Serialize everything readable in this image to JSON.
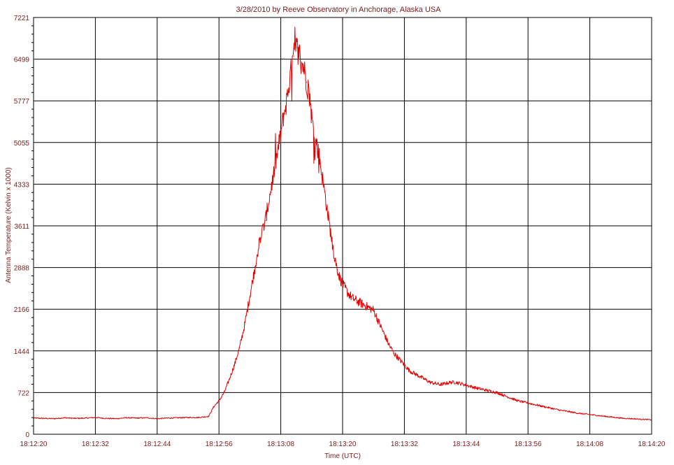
{
  "chart_data": {
    "type": "line",
    "title": "3/28/2010  by  Reeve Observatory  in  Anchorage, Alaska  USA",
    "xlabel": "Time (UTC)",
    "ylabel": "Antenna Temperature (Kelvin x 1000)",
    "x_ticks": [
      "18:12:20",
      "18:12:32",
      "18:12:44",
      "18:12:56",
      "18:13:08",
      "18:13:20",
      "18:13:32",
      "18:13:44",
      "18:13:56",
      "18:14:08",
      "18:14:20"
    ],
    "y_ticks": [
      "0",
      "722",
      "1444",
      "2166",
      "2888",
      "3611",
      "4333",
      "5055",
      "5777",
      "6499",
      "7221"
    ],
    "xlim_seconds": [
      0,
      120
    ],
    "ylim": [
      0,
      7221
    ],
    "grid": true,
    "line_color": "#e00000",
    "series": [
      {
        "x_seconds": [
          0,
          2,
          4,
          6,
          8,
          10,
          12,
          14,
          16,
          18,
          20,
          22,
          24,
          26,
          28,
          30,
          32,
          34,
          35,
          36,
          37,
          38,
          39,
          40,
          41,
          42,
          43,
          44,
          45,
          46,
          47,
          48,
          48.5,
          49,
          49.5,
          50,
          50.5,
          51,
          51.5,
          52,
          52.5,
          53,
          53.5,
          54,
          54.5,
          55,
          55.5,
          56,
          56.5,
          57,
          57.5,
          58,
          58.5,
          59,
          59.5,
          60,
          61,
          62,
          63,
          64,
          65,
          66,
          67,
          68,
          69,
          70,
          71,
          72,
          73,
          74,
          75,
          76,
          77,
          78,
          79,
          80,
          81,
          82,
          84,
          86,
          88,
          90,
          92,
          94,
          96,
          98,
          100,
          102,
          104,
          106,
          108,
          110,
          112,
          114,
          116,
          118,
          120
        ],
        "y": [
          280,
          275,
          270,
          285,
          275,
          280,
          290,
          275,
          270,
          285,
          280,
          285,
          270,
          280,
          285,
          290,
          290,
          310,
          480,
          580,
          720,
          950,
          1200,
          1500,
          1900,
          2400,
          2900,
          3400,
          3700,
          4200,
          4700,
          5200,
          5500,
          5700,
          6000,
          6300,
          6550,
          6700,
          6650,
          6450,
          6350,
          6100,
          5900,
          5500,
          5150,
          5000,
          4800,
          4500,
          4200,
          3900,
          3600,
          3300,
          3050,
          2850,
          2700,
          2600,
          2450,
          2350,
          2300,
          2250,
          2200,
          2150,
          1950,
          1750,
          1550,
          1400,
          1300,
          1200,
          1100,
          1050,
          1000,
          950,
          900,
          880,
          860,
          880,
          900,
          900,
          850,
          800,
          760,
          720,
          650,
          580,
          540,
          500,
          460,
          420,
          390,
          360,
          340,
          320,
          300,
          280,
          270,
          260,
          250
        ]
      }
    ]
  }
}
